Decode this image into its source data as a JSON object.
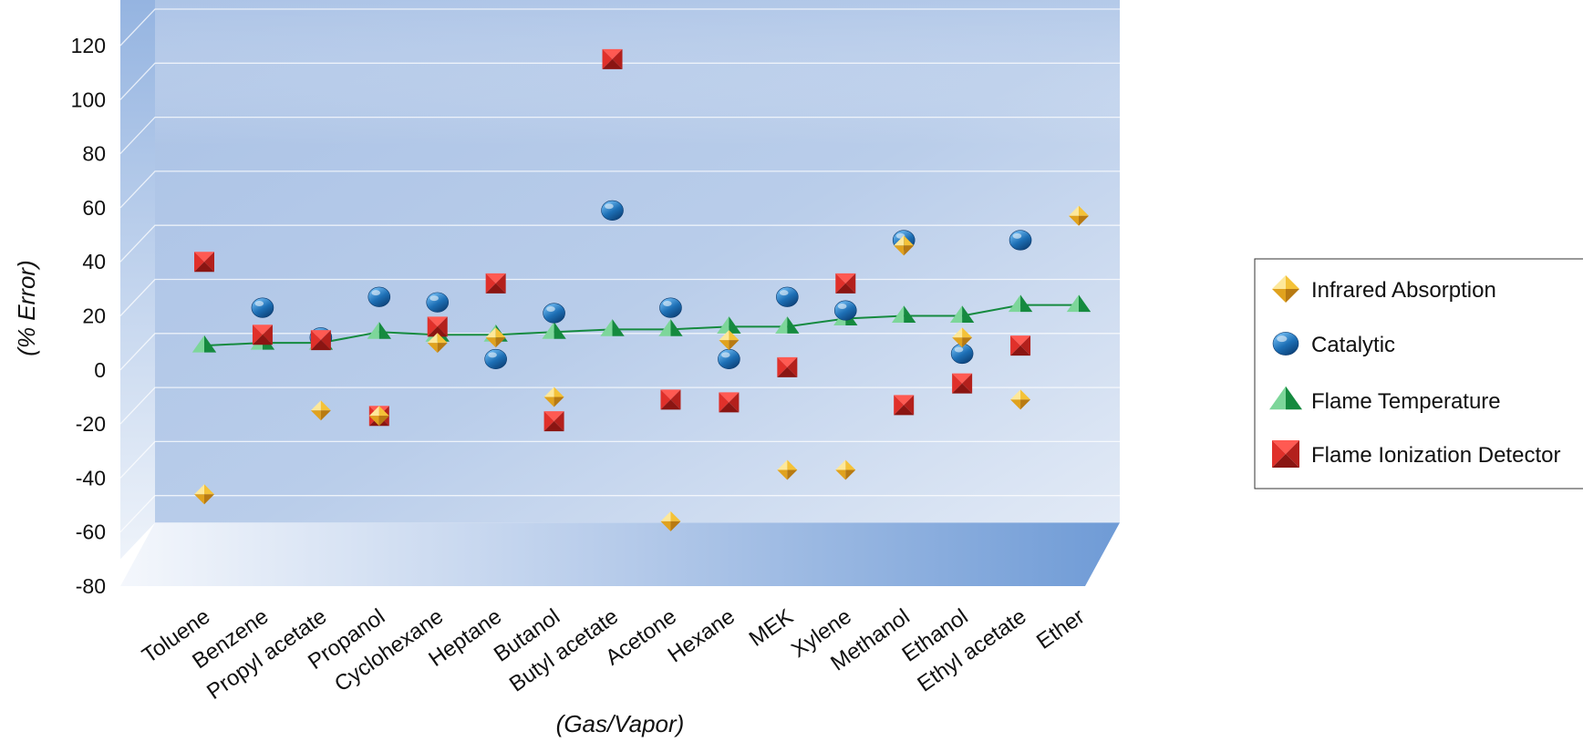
{
  "chart_data": {
    "type": "scatter",
    "title": "",
    "xlabel": "(Gas/Vapor)",
    "ylabel": "(% Error)",
    "ylim": [
      -80,
      120
    ],
    "yticks": [
      120,
      100,
      80,
      60,
      40,
      20,
      0,
      -20,
      -40,
      -60,
      -80
    ],
    "grid": true,
    "legend_position": "right",
    "categories": [
      "Toluene",
      "Benzene",
      "Propyl acetate",
      "Propanol",
      "Cyclohexane",
      "Heptane",
      "Butanol",
      "Butyl acetate",
      "Acetone",
      "Hexane",
      "MEK",
      "Xylene",
      "Methanol",
      "Ethanol",
      "Ethyl acetate",
      "Ether"
    ],
    "series": [
      {
        "name": "Infrared Absorption",
        "marker": "diamond",
        "color": "#f2b632",
        "values": [
          -46,
          null,
          -15,
          -17,
          10,
          12,
          -10,
          null,
          -56,
          11,
          -37,
          -37,
          46,
          12,
          -11,
          57
        ]
      },
      {
        "name": "Catalytic",
        "marker": "sphere",
        "color": "#1b6fb3",
        "values": [
          null,
          23,
          12,
          27,
          25,
          4,
          21,
          59,
          23,
          4,
          27,
          22,
          48,
          6,
          48,
          null
        ]
      },
      {
        "name": "Flame Temperature",
        "marker": "triangle",
        "color": "#1f9e4a",
        "line": true,
        "values": [
          9,
          10,
          10,
          14,
          13,
          13,
          14,
          15,
          15,
          16,
          16,
          19,
          20,
          20,
          24,
          24
        ]
      },
      {
        "name": "Flame Ionization Detector",
        "marker": "square",
        "color": "#d62b2b",
        "values": [
          40,
          13,
          11,
          -17,
          16,
          32,
          -19,
          115,
          -11,
          -12,
          1,
          32,
          -13,
          -5,
          9,
          null
        ]
      }
    ]
  }
}
